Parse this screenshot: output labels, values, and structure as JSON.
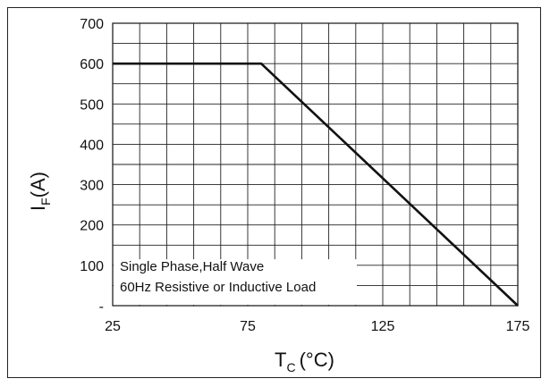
{
  "chart_data": {
    "type": "line",
    "xlabel": {
      "main": "T",
      "sub": "C",
      "unit": "(°C)"
    },
    "ylabel": {
      "main": "I",
      "sub": "F",
      "unit": "(A)"
    },
    "xlim": [
      25,
      175
    ],
    "ylim": [
      0,
      700
    ],
    "x_ticks": [
      25,
      75,
      125,
      175
    ],
    "x_tick_labels": [
      "25",
      "75",
      "125",
      "175"
    ],
    "y_ticks": [
      0,
      100,
      200,
      300,
      400,
      500,
      600,
      700
    ],
    "y_tick_labels": [
      "-",
      "100",
      "200",
      "300",
      "400",
      "500",
      "600",
      "700"
    ],
    "grid": true,
    "grid_x_step": 10,
    "grid_y_step": 50,
    "series": [
      {
        "x": [
          25,
          80,
          175
        ],
        "y": [
          600,
          600,
          0
        ]
      }
    ],
    "annotation": {
      "lines": [
        "Single Phase,Half Wave",
        "60Hz Resistive or Inductive Load"
      ],
      "placement": "bottom-left"
    }
  }
}
